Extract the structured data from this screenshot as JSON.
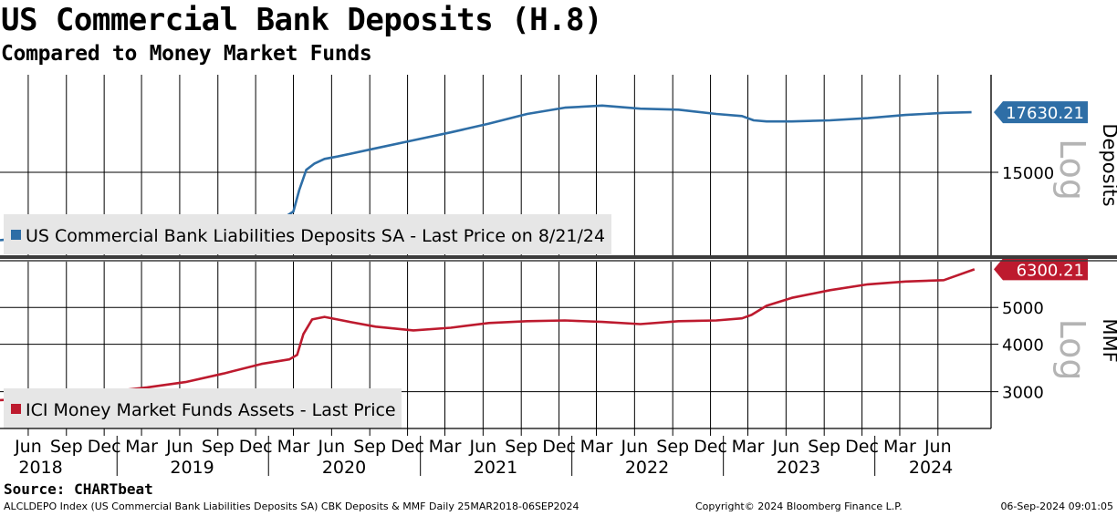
{
  "title": "US Commercial Bank Deposits (H.8)",
  "subtitle": "Compared to Money Market Funds",
  "source": "Source: CHARTbeat",
  "footer": {
    "left": "ALCLDEPO Index (US Commercial Bank Liabilities Deposits SA) CBK Deposits & MMF  Daily 25MAR2018-06SEP2024",
    "middle": "Copyright© 2024 Bloomberg Finance L.P.",
    "right": "06-Sep-2024 09:01:05"
  },
  "colors": {
    "deposits": "#2e6ea6",
    "mmf": "#bd1a2e",
    "grid": "#000000"
  },
  "chart_data": [
    {
      "type": "line",
      "panel": "top",
      "series_name": "US Commercial Bank Liabilities Deposits SA - Last Price on 8/21/24",
      "axis_label": "Deposits",
      "scale_label": "Log",
      "log_scale": true,
      "ylim": [
        12000,
        19500
      ],
      "y_ticks": [
        {
          "value": 15000,
          "label": "15000"
        }
      ],
      "last_value": 17630.21,
      "last_label": "17630.21",
      "x": [
        "2018-03-25",
        "2018-06-15",
        "2018-09-15",
        "2018-12-15",
        "2019-03-15",
        "2019-06-15",
        "2019-09-15",
        "2019-12-15",
        "2020-02-15",
        "2020-03-01",
        "2020-03-15",
        "2020-04-01",
        "2020-04-20",
        "2020-05-15",
        "2020-06-15",
        "2020-09-15",
        "2020-12-15",
        "2021-03-15",
        "2021-06-15",
        "2021-09-15",
        "2021-12-15",
        "2022-03-15",
        "2022-06-15",
        "2022-09-15",
        "2022-12-15",
        "2023-02-15",
        "2023-03-15",
        "2023-04-15",
        "2023-06-15",
        "2023-09-15",
        "2023-12-15",
        "2024-03-15",
        "2024-06-15",
        "2024-08-21"
      ],
      "y": [
        12500,
        12600,
        12650,
        12750,
        12850,
        12950,
        13050,
        13200,
        13350,
        13500,
        14300,
        15100,
        15350,
        15550,
        15650,
        16000,
        16350,
        16700,
        17100,
        17550,
        17850,
        17950,
        17800,
        17750,
        17550,
        17450,
        17250,
        17200,
        17200,
        17250,
        17350,
        17500,
        17600,
        17630
      ]
    },
    {
      "type": "line",
      "panel": "bottom",
      "series_name": "ICI Money Market Funds Assets - Last Price",
      "axis_label": "MMF",
      "scale_label": "Log",
      "log_scale": true,
      "ylim": [
        2400,
        6600
      ],
      "y_ticks": [
        {
          "value": 3000,
          "label": "3000"
        },
        {
          "value": 4000,
          "label": "4000"
        },
        {
          "value": 5000,
          "label": "5000"
        }
      ],
      "last_value": 6300.21,
      "last_label": "6300.21",
      "x": [
        "2018-03-25",
        "2018-06-15",
        "2018-09-15",
        "2018-12-15",
        "2019-03-15",
        "2019-06-15",
        "2019-09-15",
        "2019-12-15",
        "2020-02-20",
        "2020-03-10",
        "2020-03-25",
        "2020-04-15",
        "2020-05-15",
        "2020-07-15",
        "2020-09-15",
        "2020-12-15",
        "2021-03-15",
        "2021-06-15",
        "2021-09-15",
        "2021-12-15",
        "2022-03-15",
        "2022-06-15",
        "2022-09-15",
        "2022-12-15",
        "2023-02-15",
        "2023-03-10",
        "2023-04-15",
        "2023-06-15",
        "2023-09-15",
        "2023-12-15",
        "2024-03-15",
        "2024-06-15",
        "2024-08-28"
      ],
      "y": [
        2850,
        2880,
        2920,
        3000,
        3080,
        3180,
        3350,
        3550,
        3650,
        3750,
        4250,
        4650,
        4720,
        4580,
        4450,
        4350,
        4420,
        4550,
        4600,
        4620,
        4580,
        4520,
        4600,
        4620,
        4680,
        4780,
        5050,
        5300,
        5550,
        5750,
        5850,
        5900,
        6300
      ]
    }
  ],
  "x_axis": {
    "months": [
      {
        "date": "2018-06-01",
        "label": "Jun"
      },
      {
        "date": "2018-09-01",
        "label": "Sep"
      },
      {
        "date": "2018-12-01",
        "label": "Dec"
      },
      {
        "date": "2019-03-01",
        "label": "Mar"
      },
      {
        "date": "2019-06-01",
        "label": "Jun"
      },
      {
        "date": "2019-09-01",
        "label": "Sep"
      },
      {
        "date": "2019-12-01",
        "label": "Dec"
      },
      {
        "date": "2020-03-01",
        "label": "Mar"
      },
      {
        "date": "2020-06-01",
        "label": "Jun"
      },
      {
        "date": "2020-09-01",
        "label": "Sep"
      },
      {
        "date": "2020-12-01",
        "label": "Dec"
      },
      {
        "date": "2021-03-01",
        "label": "Mar"
      },
      {
        "date": "2021-06-01",
        "label": "Jun"
      },
      {
        "date": "2021-09-01",
        "label": "Sep"
      },
      {
        "date": "2021-12-01",
        "label": "Dec"
      },
      {
        "date": "2022-03-01",
        "label": "Mar"
      },
      {
        "date": "2022-06-01",
        "label": "Jun"
      },
      {
        "date": "2022-09-01",
        "label": "Sep"
      },
      {
        "date": "2022-12-01",
        "label": "Dec"
      },
      {
        "date": "2023-03-01",
        "label": "Mar"
      },
      {
        "date": "2023-06-01",
        "label": "Jun"
      },
      {
        "date": "2023-09-01",
        "label": "Sep"
      },
      {
        "date": "2023-12-01",
        "label": "Dec"
      },
      {
        "date": "2024-03-01",
        "label": "Mar"
      },
      {
        "date": "2024-06-01",
        "label": "Jun"
      }
    ],
    "years": [
      {
        "date": "2018-07-01",
        "label": "2018"
      },
      {
        "date": "2019-07-01",
        "label": "2019"
      },
      {
        "date": "2020-07-01",
        "label": "2020"
      },
      {
        "date": "2021-07-01",
        "label": "2021"
      },
      {
        "date": "2022-07-01",
        "label": "2022"
      },
      {
        "date": "2023-07-01",
        "label": "2023"
      },
      {
        "date": "2024-05-15",
        "label": "2024"
      }
    ],
    "year_starts": [
      "2019-01-01",
      "2020-01-01",
      "2021-01-01",
      "2022-01-01",
      "2023-01-01",
      "2024-01-01"
    ]
  }
}
